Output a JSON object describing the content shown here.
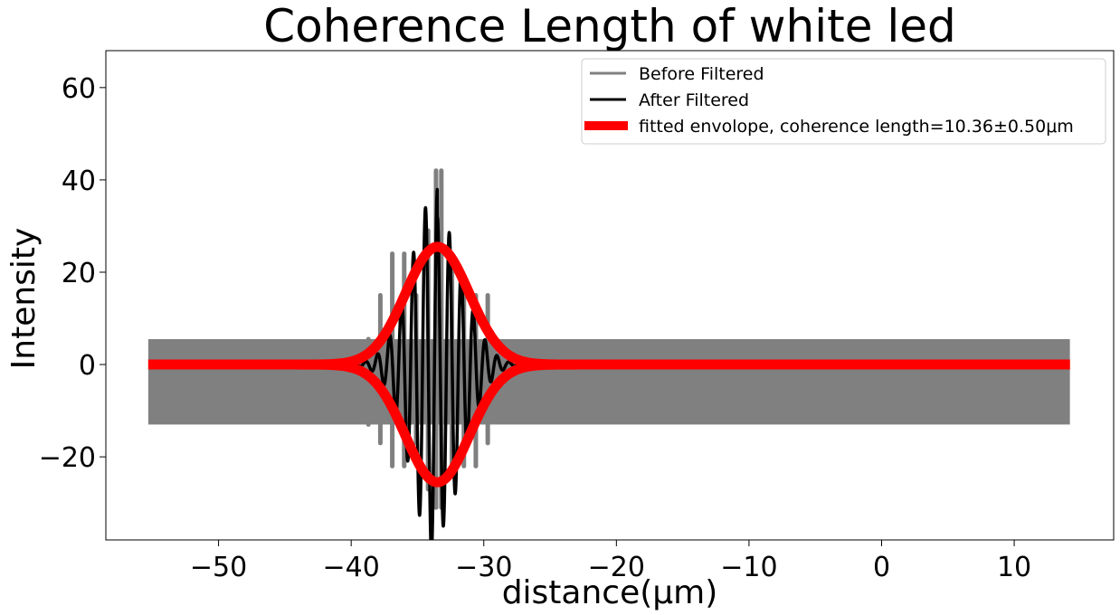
{
  "chart_data": {
    "type": "line",
    "title": "Coherence Length of white led",
    "xlabel": "distance(μm)",
    "ylabel": "Intensity",
    "xlim": [
      -58.5,
      17.5
    ],
    "ylim": [
      -38,
      68
    ],
    "x_ticks": [
      -50,
      -40,
      -30,
      -20,
      -10,
      0,
      10
    ],
    "x_tick_labels": [
      "−50",
      "−40",
      "−30",
      "−20",
      "−10",
      "0",
      "10"
    ],
    "y_ticks": [
      -20,
      0,
      20,
      40,
      60
    ],
    "y_tick_labels": [
      "−20",
      "0",
      "20",
      "40",
      "60"
    ],
    "grid": false,
    "legend_position": "top-right",
    "series": [
      {
        "name": "Before Filtered",
        "color": "#808080",
        "x_range": [
          -55.3,
          14.2
        ],
        "background_band": [
          -13,
          5.5
        ],
        "peaks": [
          {
            "x": -38.7,
            "max": 5.5,
            "min": -13
          },
          {
            "x": -37.8,
            "max": 15,
            "min": -17
          },
          {
            "x": -36.9,
            "max": 24,
            "min": -22
          },
          {
            "x": -36.0,
            "max": 24,
            "min": -22
          },
          {
            "x": -35.1,
            "max": 15,
            "min": -17
          },
          {
            "x": -34.2,
            "max": 29,
            "min": -27
          },
          {
            "x": -33.6,
            "max": 42,
            "min": -31
          },
          {
            "x": -33.2,
            "max": 42,
            "min": -31
          },
          {
            "x": -32.4,
            "max": 24,
            "min": -24
          },
          {
            "x": -31.5,
            "max": 15,
            "min": -22
          },
          {
            "x": -30.6,
            "max": 15,
            "min": -22
          },
          {
            "x": -29.7,
            "max": 15,
            "min": -17
          },
          {
            "x": -28.8,
            "max": 5,
            "min": -12
          },
          {
            "x": -27.8,
            "max": 4,
            "min": -7
          }
        ]
      },
      {
        "name": "After Filtered",
        "color": "#000000",
        "x_center": -33.5,
        "amplitude": 40,
        "period": 0.9,
        "sigma": 1.9,
        "offset": 4,
        "x_range": [
          -39.5,
          -27.5
        ]
      },
      {
        "name": "fitted envolope, coherence length=10.36±0.50μm",
        "color": "#ff0000",
        "x_center": -33.5,
        "amplitude": 25.5,
        "sigma": 2.4,
        "x_range": [
          -55.3,
          14.2
        ]
      }
    ]
  }
}
